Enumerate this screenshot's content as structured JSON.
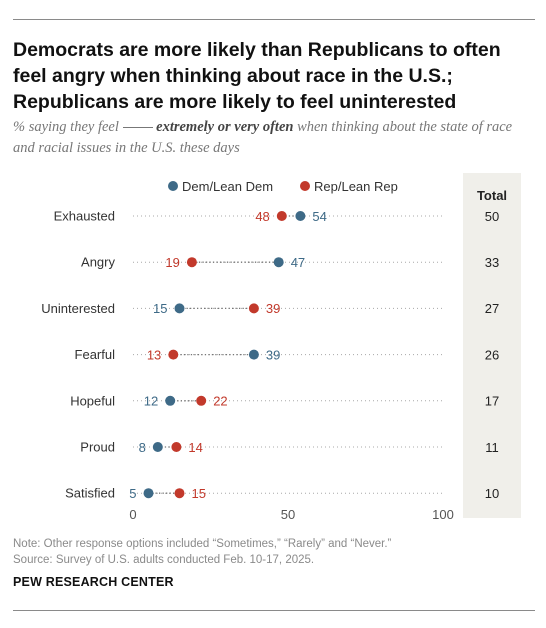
{
  "title": "Democrats are more likely than Republicans to often feel angry when thinking about race in the U.S.; Republicans are more likely to feel uninterested",
  "subtitle": {
    "prefix": "% saying they feel",
    "emphasis": "extremely or very often",
    "suffix": "when thinking about the state of race and racial issues in the U.S. these days"
  },
  "note": "Note: Other response options included “Sometimes,” “Rarely” and “Never.”",
  "source": "Source: Survey of U.S. adults conducted Feb. 10-17, 2025.",
  "brand": "PEW RESEARCH CENTER",
  "colors": {
    "dem": "#3e6a87",
    "rep": "#c2392b",
    "total_bg": "#f0efea"
  },
  "chart_data": {
    "type": "dot",
    "categories": [
      "Exhausted",
      "Angry",
      "Uninterested",
      "Fearful",
      "Hopeful",
      "Proud",
      "Satisfied"
    ],
    "series": [
      {
        "name": "Dem/Lean Dem",
        "values": [
          54,
          47,
          15,
          39,
          12,
          8,
          5
        ]
      },
      {
        "name": "Rep/Lean Rep",
        "values": [
          48,
          19,
          39,
          13,
          22,
          14,
          15
        ]
      }
    ],
    "total_label": "Total",
    "totals": [
      50,
      33,
      27,
      26,
      17,
      11,
      10
    ],
    "xlim": [
      0,
      100
    ],
    "xticks": [
      0,
      50,
      100
    ],
    "legend_position": "top"
  }
}
